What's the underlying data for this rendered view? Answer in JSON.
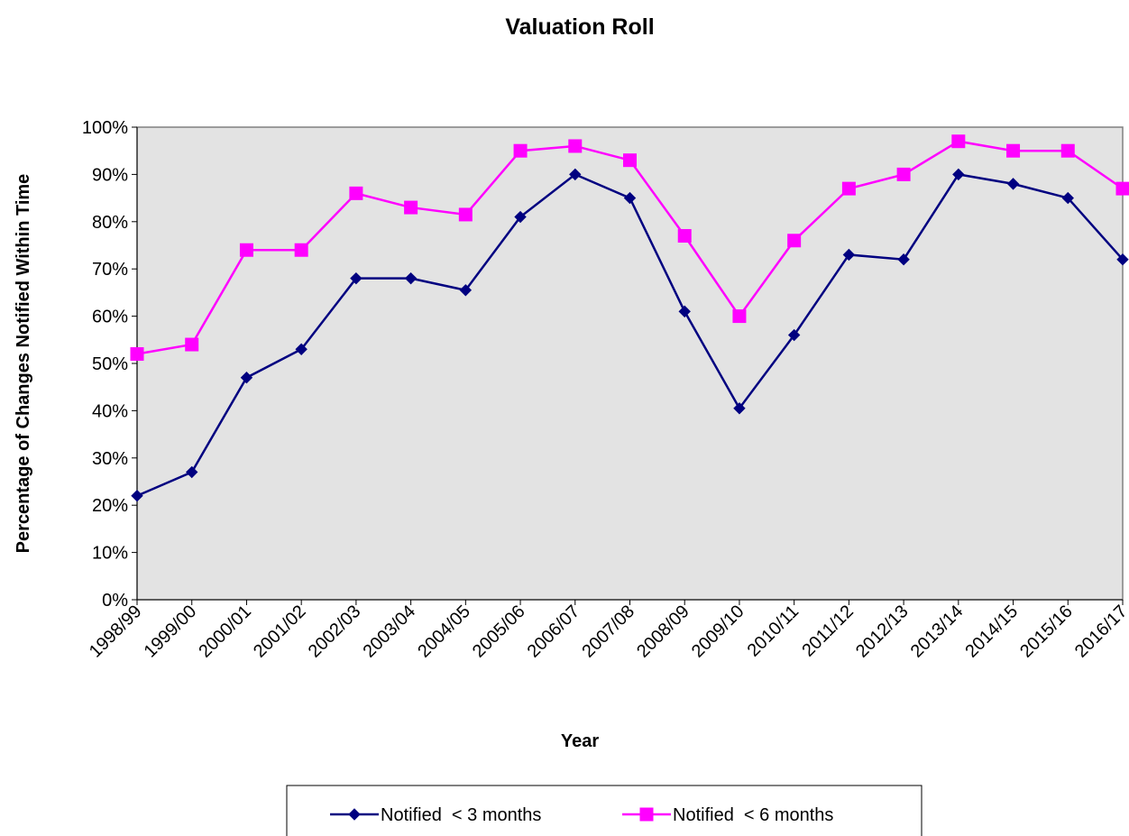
{
  "chart_data": {
    "type": "line",
    "title": "Valuation Roll",
    "x_label": "Year",
    "y_label": "Percentage of Changes Notified Within Time",
    "categories": [
      "1998/99",
      "1999/00",
      "2000/01",
      "2001/02",
      "2002/03",
      "2003/04",
      "2004/05",
      "2005/06",
      "2006/07",
      "2007/08",
      "2008/09",
      "2009/10",
      "2010/11",
      "2011/12",
      "2012/13",
      "2013/14",
      "2014/15",
      "2015/16",
      "2016/17"
    ],
    "series": [
      {
        "name": "Notified  < 3 months",
        "color": "#000080",
        "marker": "diamond",
        "values": [
          22,
          27,
          47,
          53,
          68,
          68,
          65.5,
          81,
          90,
          85,
          61,
          40.5,
          56,
          73,
          72,
          90,
          88,
          85,
          72
        ]
      },
      {
        "name": "Notified  < 6 months",
        "color": "#ff00ff",
        "marker": "square",
        "values": [
          52,
          54,
          74,
          74,
          86,
          83,
          81.5,
          95,
          96,
          93,
          77,
          60,
          76,
          87,
          90,
          97,
          95,
          95,
          87
        ]
      }
    ],
    "ylim": [
      0,
      100
    ],
    "yticks": [
      {
        "value": 0,
        "label": "0%"
      },
      {
        "value": 10,
        "label": "10%"
      },
      {
        "value": 20,
        "label": "20%"
      },
      {
        "value": 30,
        "label": "30%"
      },
      {
        "value": 40,
        "label": "40%"
      },
      {
        "value": 50,
        "label": "50%"
      },
      {
        "value": 60,
        "label": "60%"
      },
      {
        "value": 70,
        "label": "70%"
      },
      {
        "value": 80,
        "label": "80%"
      },
      {
        "value": 90,
        "label": "90%"
      },
      {
        "value": 100,
        "label": "100%"
      }
    ],
    "plot_background": "#e3e3e3"
  }
}
